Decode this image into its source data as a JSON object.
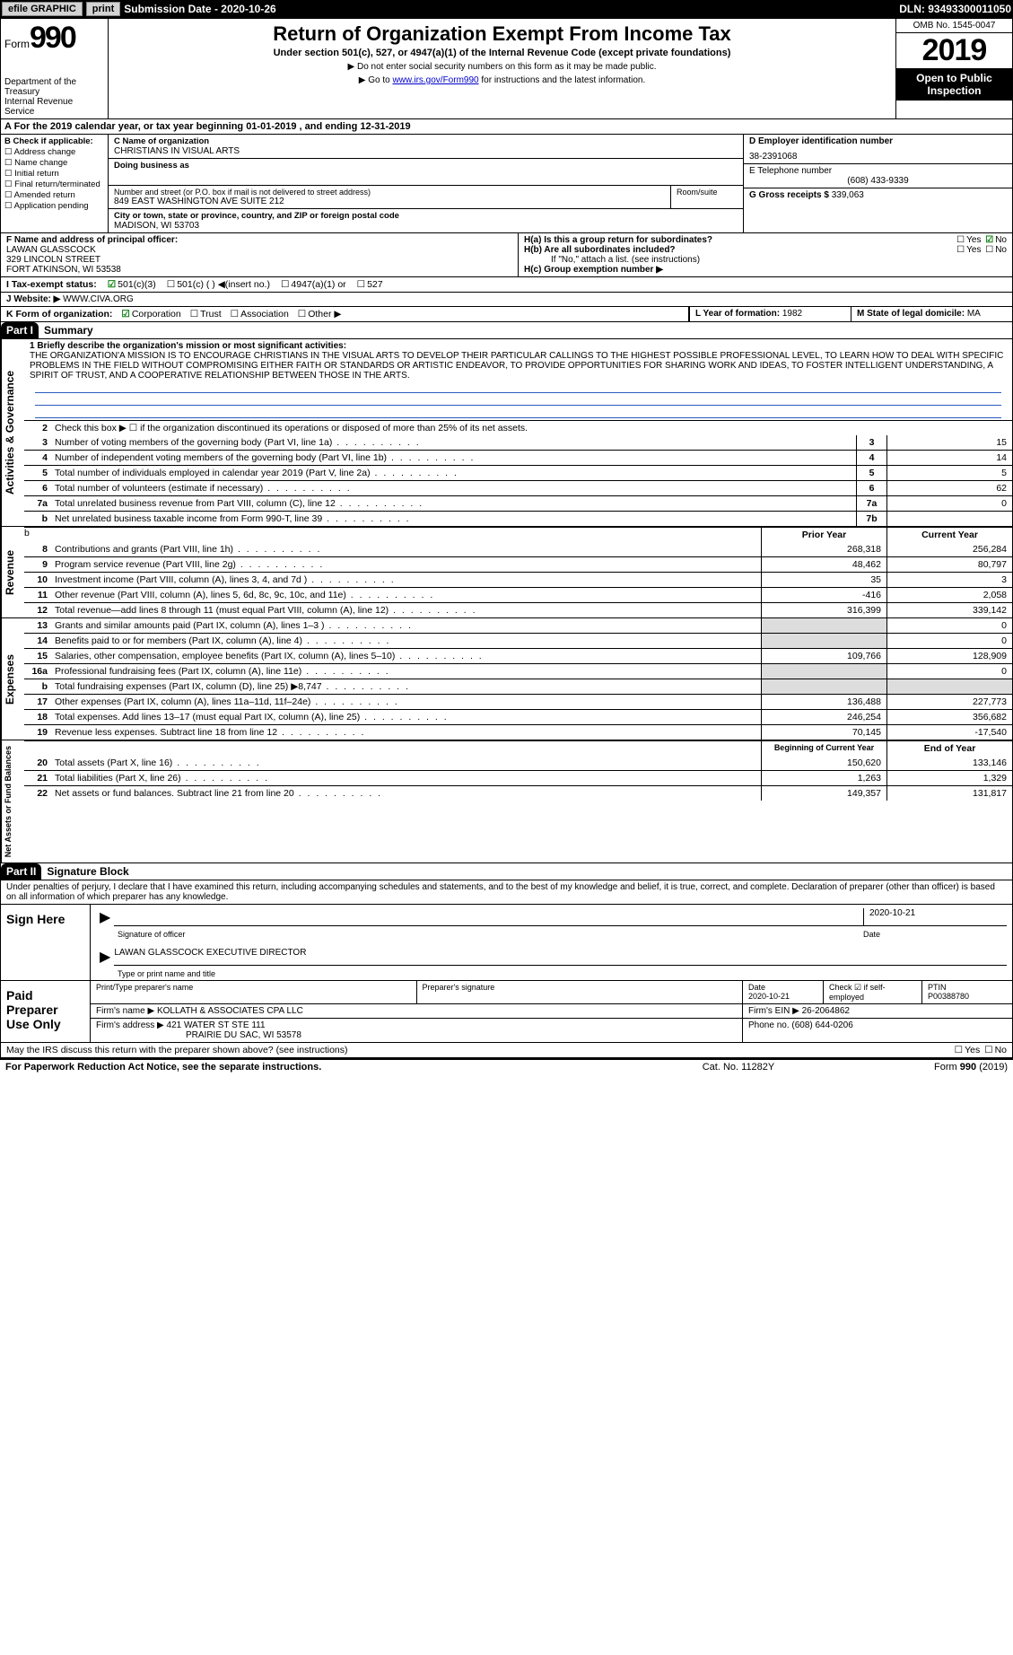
{
  "topbar": {
    "efile": "efile GRAPHIC",
    "print": "print",
    "sub_date_label": "Submission Date - ",
    "sub_date": "2020-10-26",
    "dln_label": "DLN: ",
    "dln": "93493300011050"
  },
  "header": {
    "form_word": "Form",
    "form_num": "990",
    "dept1": "Department of the Treasury",
    "dept2": "Internal Revenue Service",
    "title": "Return of Organization Exempt From Income Tax",
    "subtitle": "Under section 501(c), 527, or 4947(a)(1) of the Internal Revenue Code (except private foundations)",
    "note1": "▶ Do not enter social security numbers on this form as it may be made public.",
    "note2_pre": "▶ Go to ",
    "note2_link": "www.irs.gov/Form990",
    "note2_post": " for instructions and the latest information.",
    "omb": "OMB No. 1545-0047",
    "year": "2019",
    "public1": "Open to Public",
    "public2": "Inspection"
  },
  "rowA": {
    "text": "A  For the 2019 calendar year, or tax year beginning 01-01-2019   , and ending 12-31-2019"
  },
  "boxB": {
    "label": "B Check if applicable:",
    "opts": [
      "Address change",
      "Name change",
      "Initial return",
      "Final return/terminated",
      "Amended return",
      "Application pending"
    ]
  },
  "boxC": {
    "name_label": "C Name of organization",
    "name": "CHRISTIANS IN VISUAL ARTS",
    "dba_label": "Doing business as",
    "dba": "",
    "street_label": "Number and street (or P.O. box if mail is not delivered to street address)",
    "room_label": "Room/suite",
    "street": "849 EAST WASHINGTON AVE SUITE 212",
    "city_label": "City or town, state or province, country, and ZIP or foreign postal code",
    "city": "MADISON, WI  53703"
  },
  "boxD": {
    "label": "D Employer identification number",
    "val": "38-2391068"
  },
  "boxE": {
    "label": "E Telephone number",
    "val": "(608) 433-9339"
  },
  "boxG": {
    "label": "G Gross receipts $ ",
    "val": "339,063"
  },
  "boxF": {
    "label": "F  Name and address of principal officer:",
    "name": "LAWAN GLASSCOCK",
    "line2": "329 LINCOLN STREET",
    "line3": "FORT ATKINSON, WI  53538"
  },
  "boxH": {
    "ha": "H(a)  Is this a group return for subordinates?",
    "ha_yes": "Yes",
    "ha_no": "No",
    "hb": "H(b)  Are all subordinates included?",
    "hb_yes": "Yes",
    "hb_no": "No",
    "hb_note": "If \"No,\" attach a list. (see instructions)",
    "hc": "H(c)  Group exemption number ▶"
  },
  "rowI": {
    "label": "I  Tax-exempt status:",
    "o1": "501(c)(3)",
    "o2": "501(c) (  ) ◀(insert no.)",
    "o3": "4947(a)(1) or",
    "o4": "527"
  },
  "rowJ": {
    "label": "J  Website: ▶",
    "val": " WWW.CIVA.ORG"
  },
  "rowK": {
    "label": "K Form of organization:",
    "o1": "Corporation",
    "o2": "Trust",
    "o3": "Association",
    "o4": "Other ▶"
  },
  "rowL": {
    "label": "L Year of formation: ",
    "val": "1982"
  },
  "rowM": {
    "label": "M State of legal domicile: ",
    "val": "MA"
  },
  "partI": {
    "hdr": "Part I",
    "title": "Summary",
    "vtab1": "Activities & Governance",
    "l1_label": "1  Briefly describe the organization's mission or most significant activities:",
    "l1_text": "THE ORGANIZATION'A MISSION IS TO ENCOURAGE CHRISTIANS IN THE VISUAL ARTS TO DEVELOP THEIR PARTICULAR CALLINGS TO THE HIGHEST POSSIBLE PROFESSIONAL LEVEL, TO LEARN HOW TO DEAL WITH SPECIFIC PROBLEMS IN THE FIELD WITHOUT COMPROMISING EITHER FAITH OR STANDARDS OR ARTISTIC ENDEAVOR, TO PROVIDE OPPORTUNITIES FOR SHARING WORK AND IDEAS, TO FOSTER INTELLIGENT UNDERSTANDING, A SPIRIT OF TRUST, AND A COOPERATIVE RELATIONSHIP BETWEEN THOSE IN THE ARTS.",
    "l2": "Check this box ▶ ☐  if the organization discontinued its operations or disposed of more than 25% of its net assets.",
    "lines_gov": [
      {
        "n": "3",
        "t": "Number of voting members of the governing body (Part VI, line 1a)",
        "box": "3",
        "cy": "15"
      },
      {
        "n": "4",
        "t": "Number of independent voting members of the governing body (Part VI, line 1b)",
        "box": "4",
        "cy": "14"
      },
      {
        "n": "5",
        "t": "Total number of individuals employed in calendar year 2019 (Part V, line 2a)",
        "box": "5",
        "cy": "5"
      },
      {
        "n": "6",
        "t": "Total number of volunteers (estimate if necessary)",
        "box": "6",
        "cy": "62"
      },
      {
        "n": "7a",
        "t": "Total unrelated business revenue from Part VIII, column (C), line 12",
        "box": "7a",
        "cy": "0"
      },
      {
        "n": "b",
        "t": "Net unrelated business taxable income from Form 990-T, line 39",
        "box": "7b",
        "cy": ""
      }
    ],
    "vtab2": "Revenue",
    "col_prior": "Prior Year",
    "col_curr": "Current Year",
    "lines_rev": [
      {
        "n": "8",
        "t": "Contributions and grants (Part VIII, line 1h)",
        "py": "268,318",
        "cy": "256,284"
      },
      {
        "n": "9",
        "t": "Program service revenue (Part VIII, line 2g)",
        "py": "48,462",
        "cy": "80,797"
      },
      {
        "n": "10",
        "t": "Investment income (Part VIII, column (A), lines 3, 4, and 7d )",
        "py": "35",
        "cy": "3"
      },
      {
        "n": "11",
        "t": "Other revenue (Part VIII, column (A), lines 5, 6d, 8c, 9c, 10c, and 11e)",
        "py": "-416",
        "cy": "2,058"
      },
      {
        "n": "12",
        "t": "Total revenue—add lines 8 through 11 (must equal Part VIII, column (A), line 12)",
        "py": "316,399",
        "cy": "339,142"
      }
    ],
    "vtab3": "Expenses",
    "lines_exp": [
      {
        "n": "13",
        "t": "Grants and similar amounts paid (Part IX, column (A), lines 1–3 )",
        "py": "",
        "cy": "0"
      },
      {
        "n": "14",
        "t": "Benefits paid to or for members (Part IX, column (A), line 4)",
        "py": "",
        "cy": "0"
      },
      {
        "n": "15",
        "t": "Salaries, other compensation, employee benefits (Part IX, column (A), lines 5–10)",
        "py": "109,766",
        "cy": "128,909"
      },
      {
        "n": "16a",
        "t": "Professional fundraising fees (Part IX, column (A), line 11e)",
        "py": "",
        "cy": "0"
      },
      {
        "n": "b",
        "t": "Total fundraising expenses (Part IX, column (D), line 25) ▶8,747",
        "py": "",
        "cy": ""
      },
      {
        "n": "17",
        "t": "Other expenses (Part IX, column (A), lines 11a–11d, 11f–24e)",
        "py": "136,488",
        "cy": "227,773"
      },
      {
        "n": "18",
        "t": "Total expenses. Add lines 13–17 (must equal Part IX, column (A), line 25)",
        "py": "246,254",
        "cy": "356,682"
      },
      {
        "n": "19",
        "t": "Revenue less expenses. Subtract line 18 from line 12",
        "py": "70,145",
        "cy": "-17,540"
      }
    ],
    "vtab4": "Net Assets or Fund Balances",
    "col_boy": "Beginning of Current Year",
    "col_eoy": "End of Year",
    "lines_net": [
      {
        "n": "20",
        "t": "Total assets (Part X, line 16)",
        "py": "150,620",
        "cy": "133,146"
      },
      {
        "n": "21",
        "t": "Total liabilities (Part X, line 26)",
        "py": "1,263",
        "cy": "1,329"
      },
      {
        "n": "22",
        "t": "Net assets or fund balances. Subtract line 21 from line 20",
        "py": "149,357",
        "cy": "131,817"
      }
    ]
  },
  "partII": {
    "hdr": "Part II",
    "title": "Signature Block",
    "decl": "Under penalties of perjury, I declare that I have examined this return, including accompanying schedules and statements, and to the best of my knowledge and belief, it is true, correct, and complete. Declaration of preparer (other than officer) is based on all information of which preparer has any knowledge.",
    "sign_here": "Sign Here",
    "sig_of_officer": "Signature of officer",
    "sig_date": "2020-10-21",
    "date_label": "Date",
    "officer_name": "LAWAN GLASSCOCK  EXECUTIVE DIRECTOR",
    "type_name_label": "Type or print name and title",
    "paid": "Paid Preparer Use Only",
    "prep_name_label": "Print/Type preparer's name",
    "prep_sig_label": "Preparer's signature",
    "prep_date_label": "Date",
    "prep_date": "2020-10-21",
    "self_emp_label": "Check ☑ if self-employed",
    "ptin_label": "PTIN",
    "ptin": "P00388780",
    "firm_name_label": "Firm's name    ▶ ",
    "firm_name": "KOLLATH & ASSOCIATES CPA LLC",
    "firm_ein_label": "Firm's EIN ▶ ",
    "firm_ein": "26-2064862",
    "firm_addr_label": "Firm's address ▶ ",
    "firm_addr1": "421 WATER ST STE 111",
    "firm_addr2": "PRAIRIE DU SAC, WI  53578",
    "phone_label": "Phone no. ",
    "phone": "(608) 644-0206",
    "may_irs": "May the IRS discuss this return with the preparer shown above? (see instructions)",
    "yes": "Yes",
    "no": "No"
  },
  "footer": {
    "l": "For Paperwork Reduction Act Notice, see the separate instructions.",
    "m": "Cat. No. 11282Y",
    "r_pre": "Form ",
    "r_bold": "990",
    "r_post": " (2019)"
  }
}
